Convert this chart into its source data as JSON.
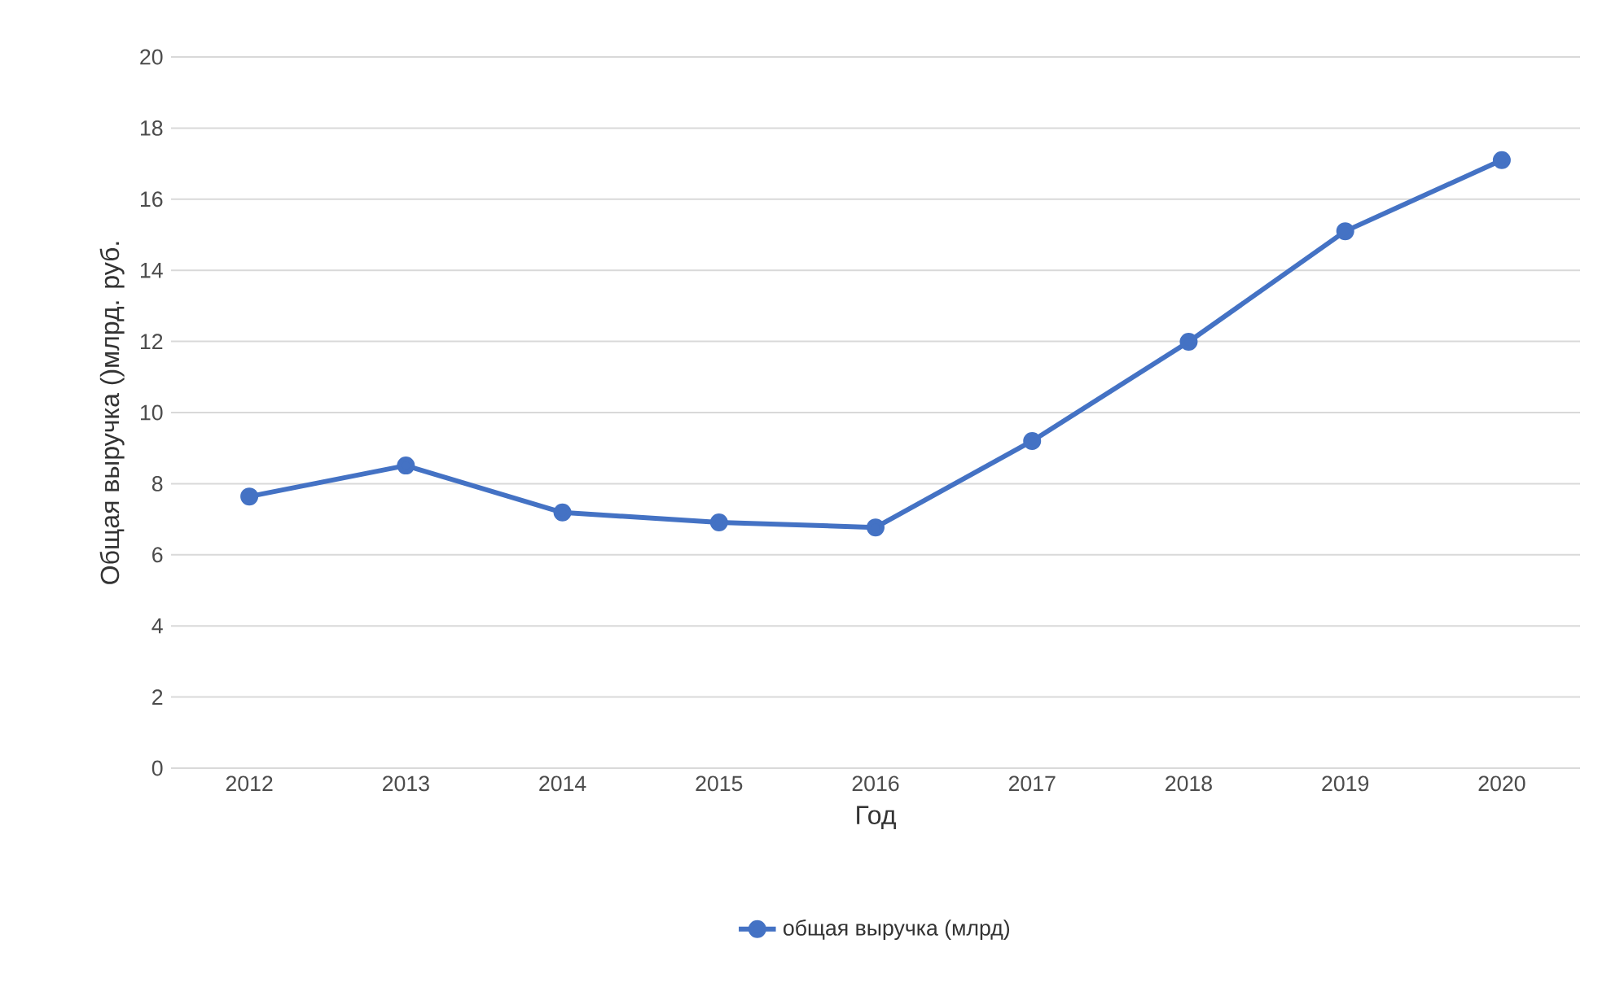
{
  "chart_data": {
    "type": "line",
    "xlabel": "Год",
    "ylabel": "Общая выручка ()млрд. руб.",
    "categories": [
      "2012",
      "2013",
      "2014",
      "2015",
      "2016",
      "2017",
      "2018",
      "2019",
      "2020"
    ],
    "series": [
      {
        "name": "общая выручка (млрд)",
        "color": "#4472c4",
        "values": [
          7.64,
          8.51,
          7.19,
          6.91,
          6.77,
          9.2,
          11.99,
          15.1,
          17.1
        ]
      }
    ],
    "ylim": [
      0,
      20
    ],
    "yticks": [
      0,
      2,
      4,
      6,
      8,
      10,
      12,
      14,
      16,
      18,
      20
    ],
    "grid": "y",
    "legend": "bottom",
    "marker": "circle",
    "line_style": "solid"
  }
}
